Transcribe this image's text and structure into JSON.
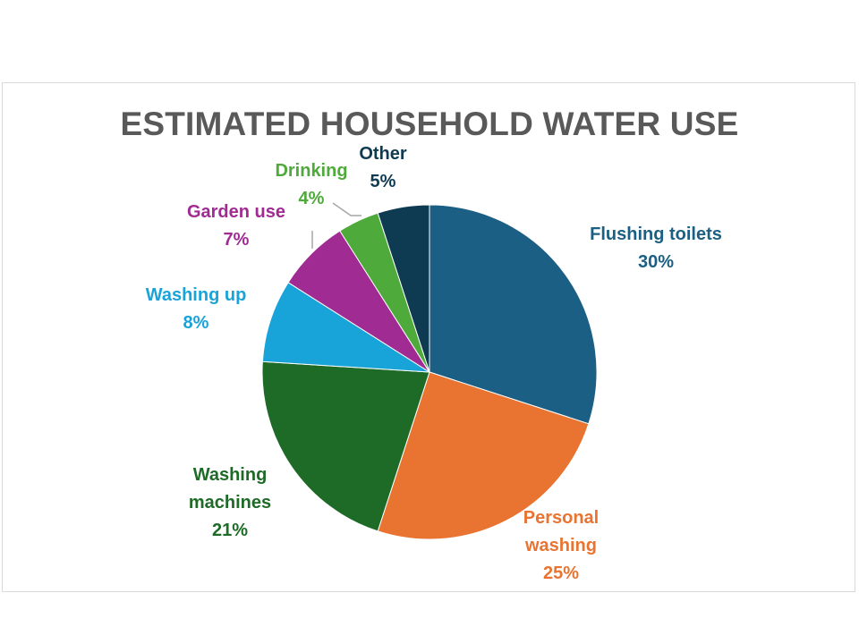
{
  "chart_data": {
    "type": "pie",
    "title": "ESTIMATED HOUSEHOLD WATER USE",
    "slices": [
      {
        "label_lines": [
          "Flushing toilets"
        ],
        "value": 30,
        "pct_label": "30%",
        "color": "#1b5f84"
      },
      {
        "label_lines": [
          "Personal",
          "washing"
        ],
        "value": 25,
        "pct_label": "25%",
        "color": "#e97431"
      },
      {
        "label_lines": [
          "Washing",
          "machines"
        ],
        "value": 21,
        "pct_label": "21%",
        "color": "#1e6b27"
      },
      {
        "label_lines": [
          "Washing up"
        ],
        "value": 8,
        "pct_label": "8%",
        "color": "#18a3d9"
      },
      {
        "label_lines": [
          "Garden use"
        ],
        "value": 7,
        "pct_label": "7%",
        "color": "#a02b93"
      },
      {
        "label_lines": [
          "Drinking"
        ],
        "value": 4,
        "pct_label": "4%",
        "color": "#4eaa3a"
      },
      {
        "label_lines": [
          "Other"
        ],
        "value": 5,
        "pct_label": "5%",
        "color": "#0e3a52"
      }
    ],
    "label_colors": [
      "#1b5f84",
      "#e97431",
      "#1e6b27",
      "#18a3d9",
      "#a02b93",
      "#4eaa3a",
      "#0e3a52"
    ],
    "legend": "none"
  }
}
